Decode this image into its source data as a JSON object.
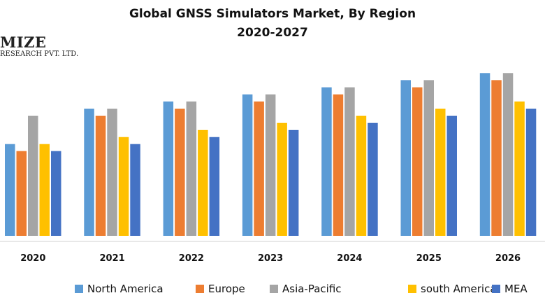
{
  "title_line1": "Global GNSS Simulators Market, By Region",
  "title_line2": "2020-2027",
  "logo": {
    "brand": "MIZE",
    "sub": "RESEARCH PVT. LTD."
  },
  "colors": {
    "North America": "#5b9bd5",
    "Europe": "#ed7d31",
    "Asia-Pacific": "#a5a5a5",
    "south America": "#ffc000",
    "MEA": "#4472c4"
  },
  "chart_data": {
    "type": "bar",
    "categories": [
      "2020",
      "2021",
      "2022",
      "2023",
      "2024",
      "2025",
      "2026"
    ],
    "series": [
      {
        "name": "North America",
        "values": [
          13,
          18,
          19,
          20,
          21,
          22,
          23
        ]
      },
      {
        "name": "Europe",
        "values": [
          12,
          17,
          18,
          19,
          20,
          21,
          22
        ]
      },
      {
        "name": "Asia-Pacific",
        "values": [
          17,
          18,
          19,
          20,
          21,
          22,
          23
        ]
      },
      {
        "name": "south America",
        "values": [
          13,
          14,
          15,
          16,
          17,
          18,
          19
        ]
      },
      {
        "name": "MEA",
        "values": [
          12,
          13,
          14,
          15,
          16,
          17,
          18
        ]
      }
    ],
    "ylim": [
      0,
      23
    ],
    "grid": false,
    "legend_position": "bottom"
  }
}
